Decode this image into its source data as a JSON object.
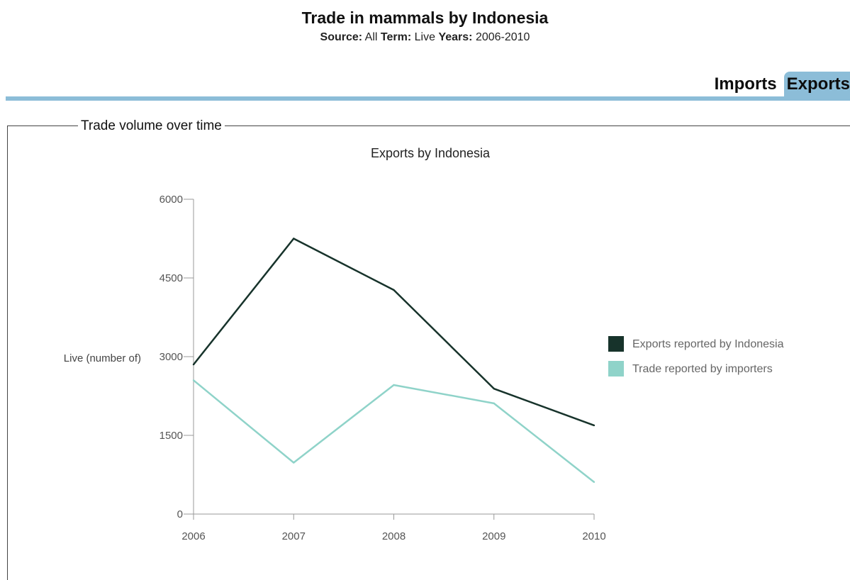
{
  "header": {
    "title": "Trade in mammals by Indonesia",
    "source_label": "Source:",
    "source_value": "All",
    "term_label": "Term:",
    "term_value": "Live",
    "years_label": "Years:",
    "years_value": "2006-2010"
  },
  "tabs": [
    {
      "label": "Imports",
      "active": false
    },
    {
      "label": "Exports",
      "active": true
    }
  ],
  "panel": {
    "legend": "Trade volume over time"
  },
  "colors": {
    "accent": "#8cbdd8",
    "series1": "#17332b",
    "series2": "#8fd3c9"
  },
  "chart_data": {
    "type": "line",
    "title": "Exports by Indonesia",
    "xlabel": "",
    "ylabel": "Live (number of)",
    "x": [
      "2006",
      "2007",
      "2008",
      "2009",
      "2010"
    ],
    "yticks": [
      "0",
      "1500",
      "3000",
      "4500",
      "6000"
    ],
    "ylim": [
      0,
      6000
    ],
    "grid": false,
    "legend_position": "right",
    "series": [
      {
        "name": "Exports reported by Indonesia",
        "values": [
          2850,
          5250,
          4270,
          2390,
          1690
        ]
      },
      {
        "name": "Trade reported by importers",
        "values": [
          2550,
          980,
          2460,
          2110,
          610
        ]
      }
    ]
  }
}
